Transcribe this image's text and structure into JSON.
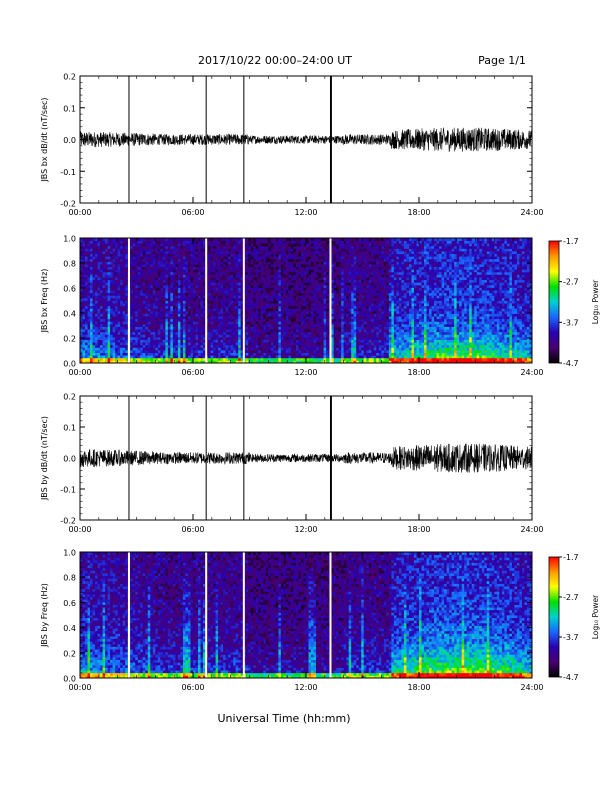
{
  "header": {
    "title": "2017/10/22   00:00–24:00 UT",
    "page": "Page 1/1"
  },
  "footer": {
    "xlabel": "Universal Time (hh:mm)"
  },
  "time_ticks": [
    "00:00",
    "06:00",
    "12:00",
    "18:00",
    "24:00"
  ],
  "colorbar": {
    "label": "Log₁₀ Power",
    "ticks": [
      "-1.7",
      "-2.7",
      "-3.7",
      "-4.7"
    ],
    "stops": [
      "#ff0000",
      "#ff9900",
      "#ffff00",
      "#00e000",
      "#00d0d0",
      "#1a66ff",
      "#2a00b0",
      "#4a0070",
      "#000000"
    ]
  },
  "chart_data": [
    {
      "type": "line",
      "ylabel": "JBS bx dB/dt (nT/sec)",
      "ylim": [
        -0.2,
        0.2
      ],
      "yticks": [
        "0.2",
        "0.1",
        "0.0",
        "-0.1",
        "-0.2"
      ],
      "xlim": [
        0,
        24
      ],
      "spike_hours": [
        2.6,
        6.7,
        8.7,
        13.3,
        13.35
      ],
      "spike_peak": 0.2,
      "spike_trough": -0.2
    },
    {
      "type": "heatmap",
      "ylabel": "JBS bx Freq (Hz)",
      "ylim": [
        0.0,
        1.0
      ],
      "yticks": [
        "1.0",
        "0.8",
        "0.6",
        "0.4",
        "0.2",
        "0.0"
      ],
      "xlim": [
        0,
        24
      ],
      "gap_hours": [
        2.6,
        6.7,
        8.7,
        13.3
      ],
      "zlim": [
        -4.7,
        -1.7
      ]
    },
    {
      "type": "line",
      "ylabel": "JBS by dB/dt (nT/sec)",
      "ylim": [
        -0.2,
        0.2
      ],
      "yticks": [
        "0.2",
        "0.1",
        "0.0",
        "-0.1",
        "-0.2"
      ],
      "xlim": [
        0,
        24
      ],
      "spike_hours": [
        2.6,
        6.7,
        8.7,
        13.3,
        13.35
      ],
      "spike_peak": 0.2,
      "spike_trough": -0.2
    },
    {
      "type": "heatmap",
      "ylabel": "JBS by Freq (Hz)",
      "ylim": [
        0.0,
        1.0
      ],
      "yticks": [
        "1.0",
        "0.8",
        "0.6",
        "0.4",
        "0.2",
        "0.0"
      ],
      "xlim": [
        0,
        24
      ],
      "gap_hours": [
        2.6,
        6.7,
        8.7,
        13.3
      ],
      "zlim": [
        -4.7,
        -1.7
      ]
    }
  ]
}
